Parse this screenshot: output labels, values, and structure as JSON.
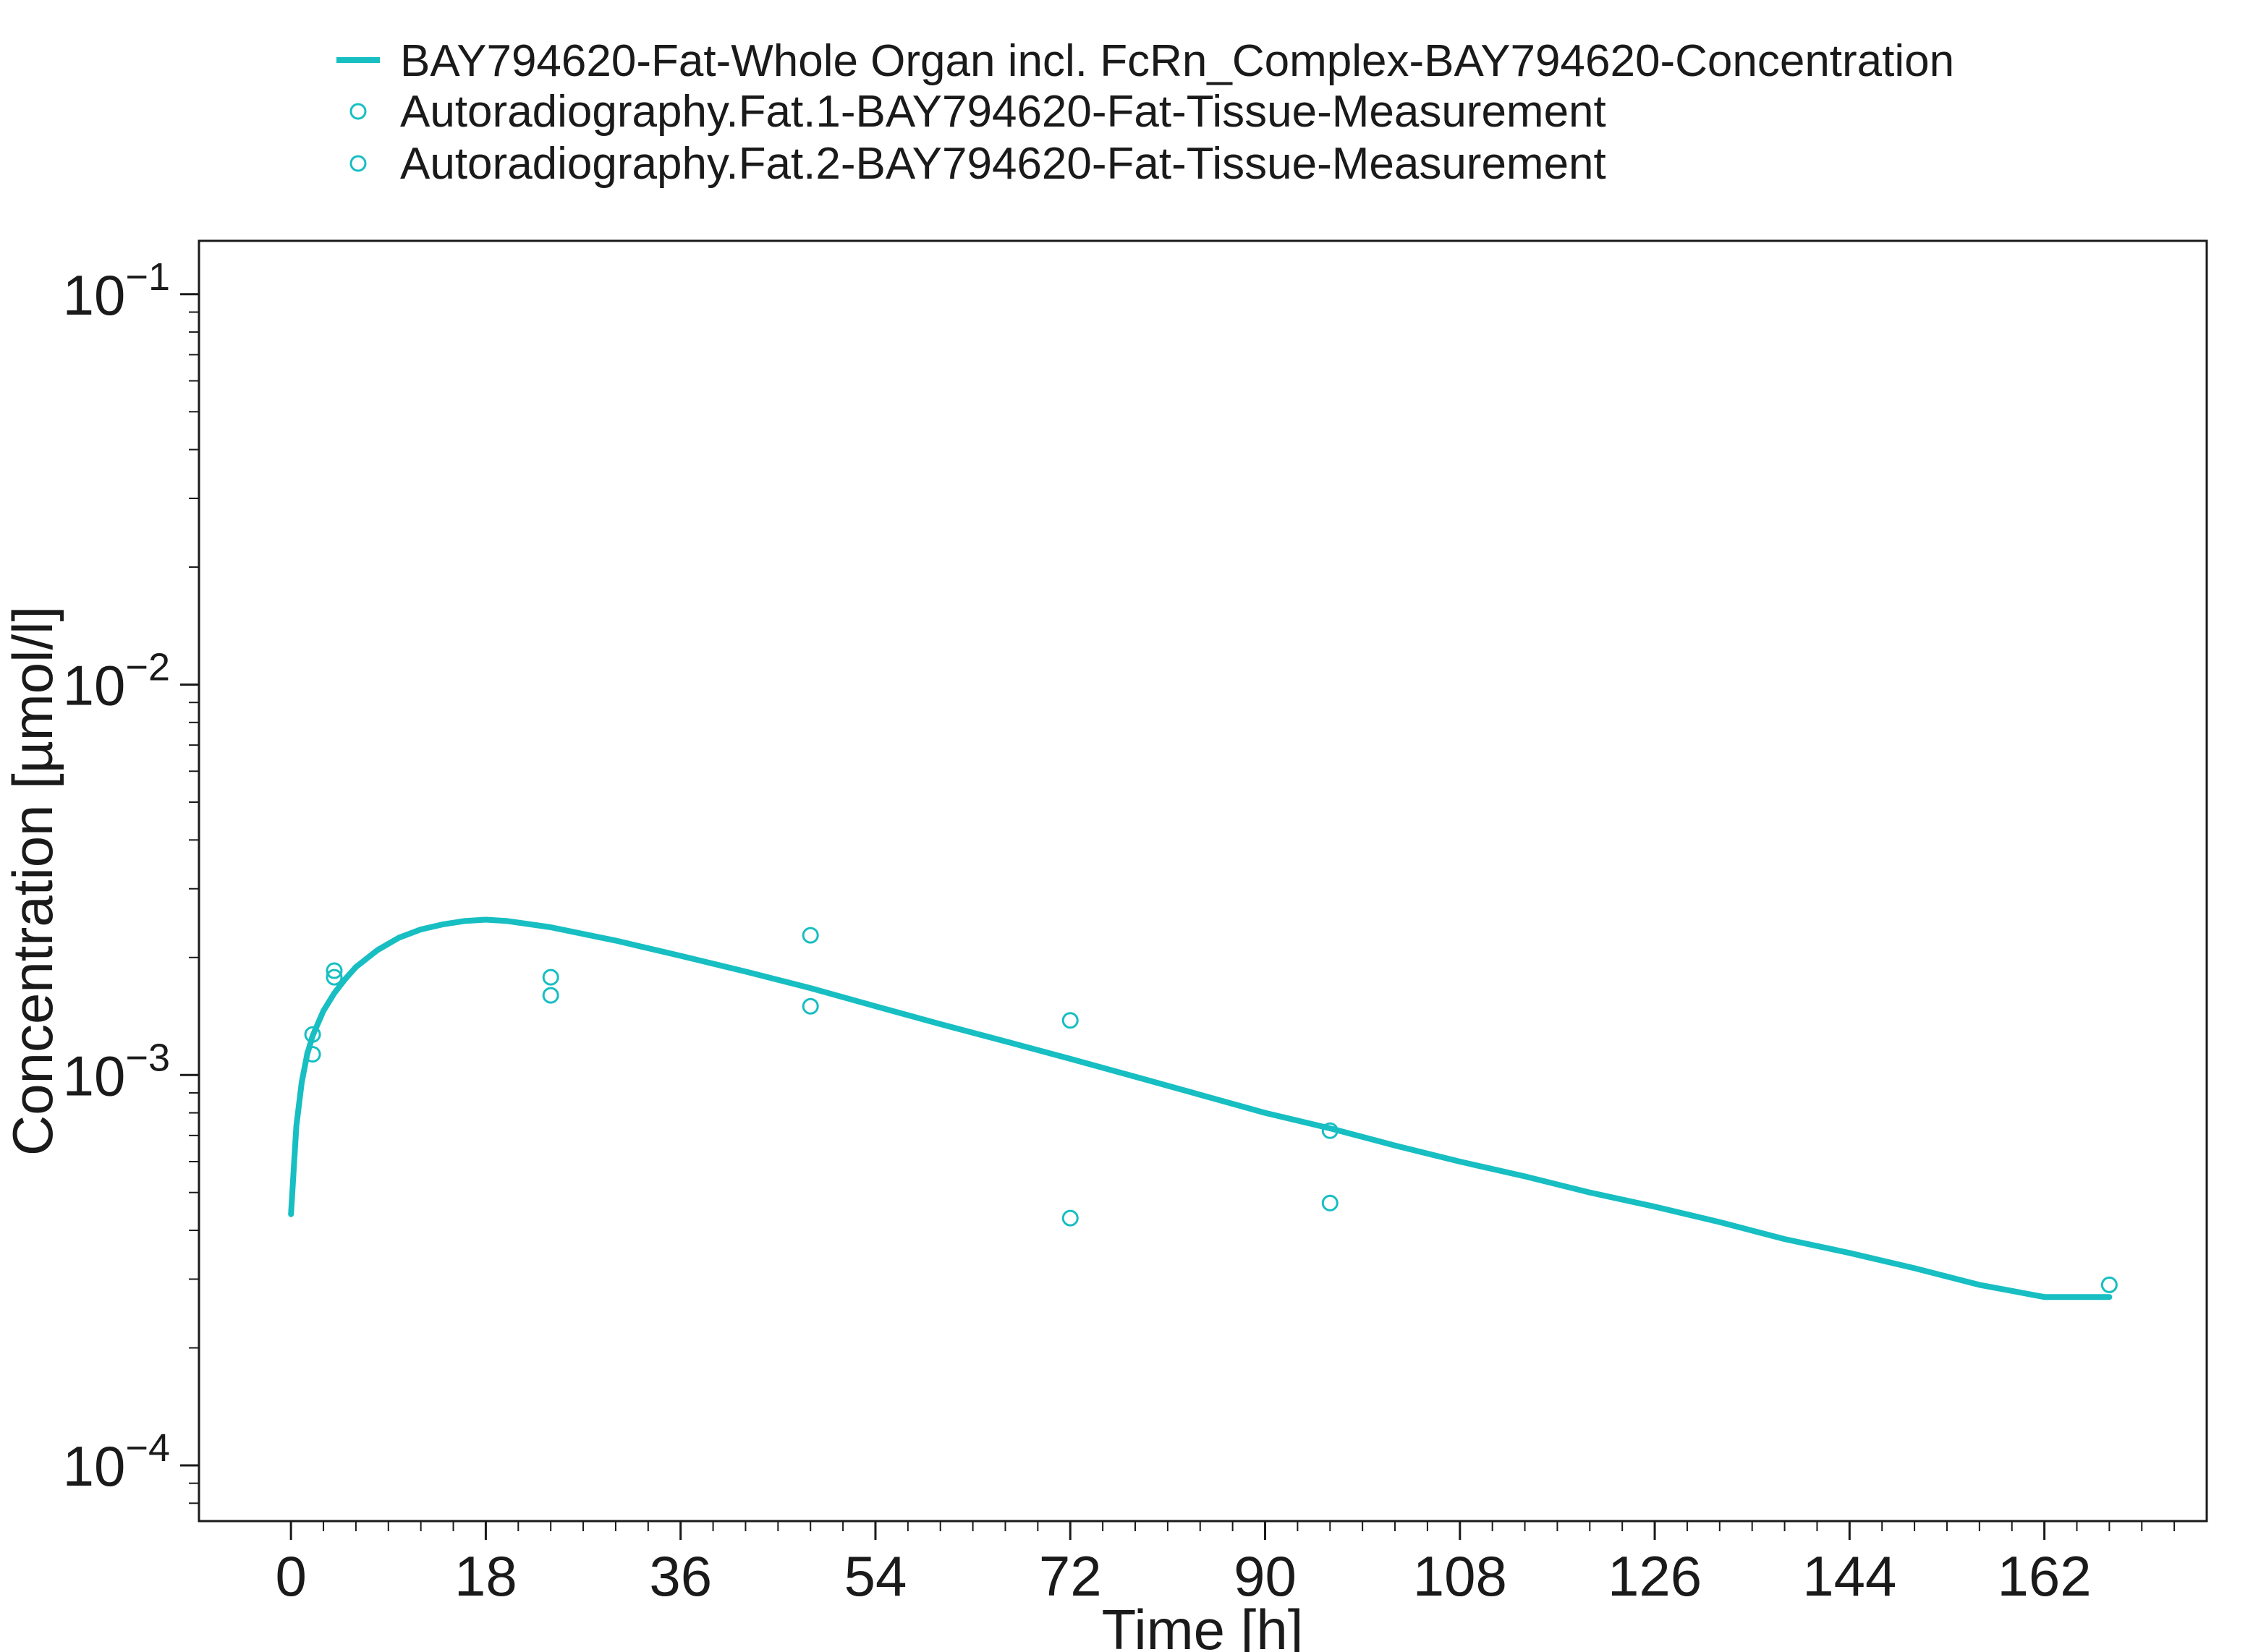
{
  "chart_data": {
    "type": "line",
    "colors": {
      "series": "#17bec2",
      "axis": "#1a1a1a"
    },
    "legend": {
      "placement": "top",
      "entries": [
        {
          "label": "BAY794620-Fat-Whole Organ incl. FcRn_Complex-BAY794620-Concentration",
          "marker": "line"
        },
        {
          "label": "Autoradiography.Fat.1-BAY794620-Fat-Tissue-Measurement",
          "marker": "circle"
        },
        {
          "label": "Autoradiography.Fat.2-BAY794620-Fat-Tissue-Measurement",
          "marker": "circle"
        }
      ]
    },
    "xaxis": {
      "label": "Time [h]",
      "lim": [
        -8.5,
        177
      ],
      "ticks": [
        0,
        18,
        36,
        54,
        72,
        90,
        108,
        126,
        144,
        162
      ],
      "tick_labels": [
        "0",
        "18",
        "36",
        "54",
        "72",
        "90",
        "108",
        "126",
        "144",
        "162"
      ]
    },
    "yaxis": {
      "label": "Concentration [µmol/l]",
      "scale": "log",
      "lim": [
        7.2e-05,
        0.137
      ],
      "ticks": [
        0.0001,
        0.001,
        0.01,
        0.1
      ],
      "tick_base": "10",
      "tick_exponents": [
        "−4",
        "−3",
        "−2",
        "−1"
      ]
    },
    "grid": false,
    "series": [
      {
        "kind": "line",
        "legend_index": 0,
        "x": [
          0,
          0.5,
          1,
          1.5,
          2,
          3,
          4,
          5,
          6,
          8,
          10,
          12,
          14,
          16,
          18,
          20,
          24,
          30,
          36,
          42,
          48,
          54,
          60,
          66,
          72,
          78,
          84,
          90,
          96,
          102,
          108,
          114,
          120,
          126,
          132,
          138,
          144,
          150,
          156,
          162,
          168
        ],
        "y": [
          0.00044,
          0.00074,
          0.00096,
          0.00113,
          0.00126,
          0.00146,
          0.00162,
          0.00176,
          0.00189,
          0.00209,
          0.00225,
          0.00236,
          0.00243,
          0.00248,
          0.0025,
          0.00248,
          0.00239,
          0.00221,
          0.00202,
          0.00184,
          0.00167,
          0.0015,
          0.00135,
          0.00122,
          0.0011,
          0.00099,
          0.00089,
          0.0008,
          0.00073,
          0.00066,
          0.0006,
          0.00055,
          0.0005,
          0.00046,
          0.00042,
          0.00038,
          0.00035,
          0.00032,
          0.00029,
          0.00027,
          0.00027
        ]
      },
      {
        "kind": "scatter",
        "legend_index": 1,
        "x": [
          2,
          4,
          24,
          48,
          72,
          96,
          168
        ],
        "y": [
          0.00113,
          0.00178,
          0.0016,
          0.00228,
          0.00138,
          0.00072,
          0.00029
        ]
      },
      {
        "kind": "scatter",
        "legend_index": 2,
        "x": [
          2,
          4,
          24,
          48,
          72,
          96
        ],
        "y": [
          0.00127,
          0.00185,
          0.00178,
          0.0015,
          0.00043,
          0.00047
        ]
      }
    ]
  }
}
